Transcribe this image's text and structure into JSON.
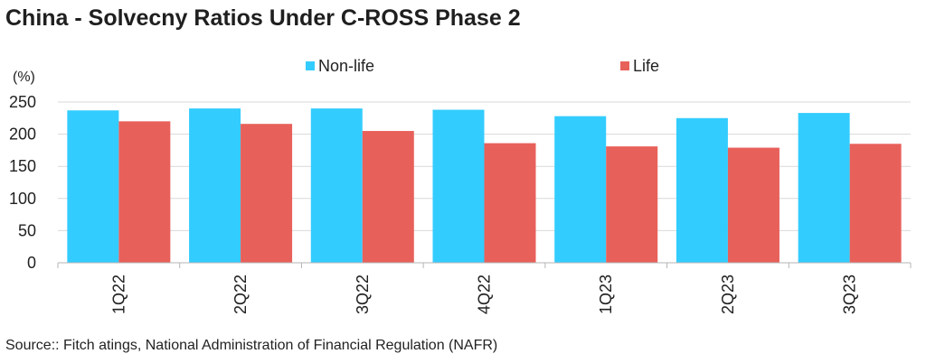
{
  "title": "China - Solvecny Ratios Under C-ROSS Phase 2",
  "source": "Source:: Fitch atings, National Administration of Financial Regulation (NAFR)",
  "chart_data": {
    "type": "bar",
    "title": "China - Solvecny Ratios Under C-ROSS Phase 2",
    "ylabel": "(%)",
    "xlabel": "",
    "categories": [
      "1Q22",
      "2Q22",
      "3Q22",
      "4Q22",
      "1Q23",
      "2Q23",
      "3Q23"
    ],
    "series": [
      {
        "name": "Non-life",
        "color": "#33ccff",
        "values": [
          237,
          240,
          240,
          238,
          228,
          225,
          233
        ]
      },
      {
        "name": "Life",
        "color": "#e8605a",
        "values": [
          220,
          216,
          205,
          186,
          181,
          179,
          185
        ]
      }
    ],
    "ylim": [
      0,
      250
    ],
    "yticks": [
      0,
      50,
      100,
      150,
      200,
      250
    ],
    "grid": true,
    "legend_position": "top"
  }
}
